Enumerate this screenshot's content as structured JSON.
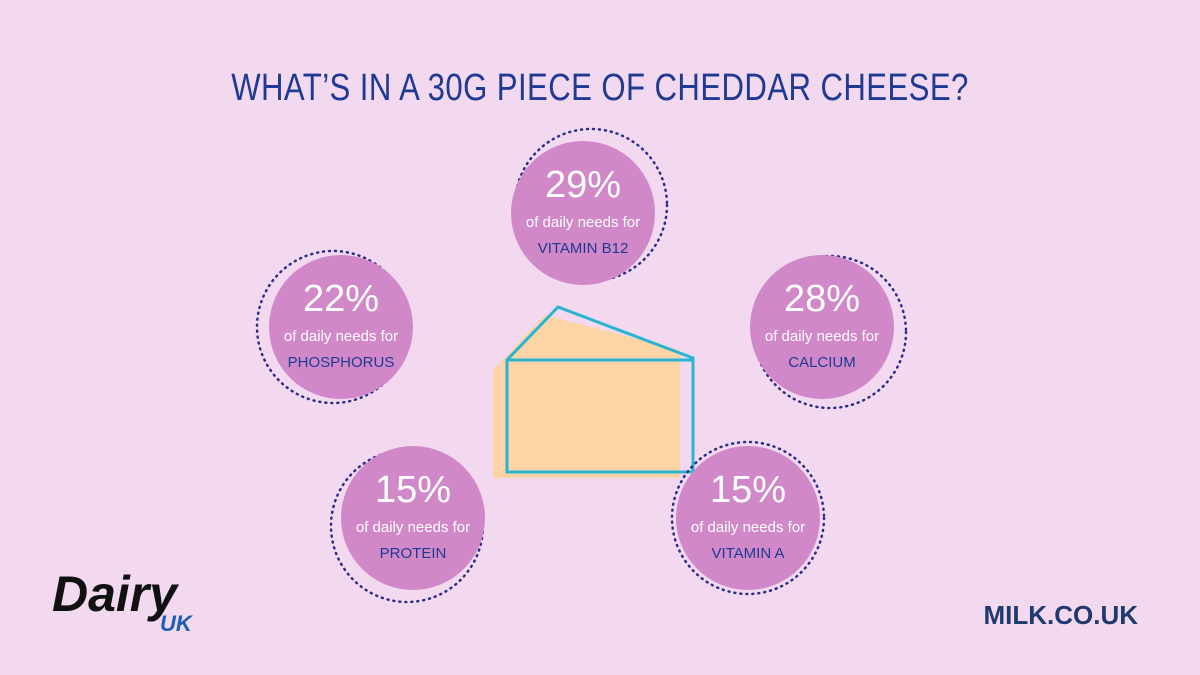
{
  "header": {
    "title": "WHAT’S IN A 30G PIECE OF CHEDDAR CHEESE?"
  },
  "items": [
    {
      "percent": "29%",
      "text": "of daily needs for",
      "nutrient": "VITAMIN B12"
    },
    {
      "percent": "22%",
      "text": "of daily needs for",
      "nutrient": "PHOSPHORUS"
    },
    {
      "percent": "28%",
      "text": "of daily needs for",
      "nutrient": "CALCIUM"
    },
    {
      "percent": "15%",
      "text": "of daily needs for",
      "nutrient": "PROTEIN"
    },
    {
      "percent": "15%",
      "text": "of daily needs for",
      "nutrient": "VITAMIN A"
    }
  ],
  "logo": {
    "name": "Dairy",
    "sub": "UK"
  },
  "website": "MILK.CO.UK"
}
